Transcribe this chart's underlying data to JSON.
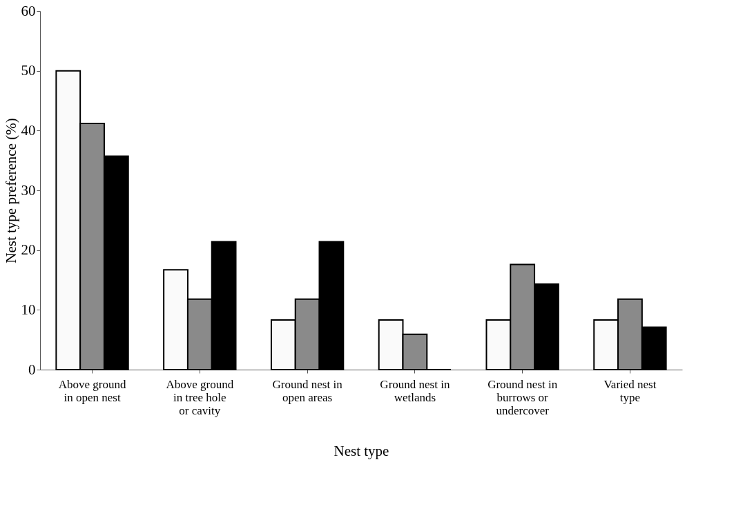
{
  "chart_data": {
    "type": "bar",
    "xlabel": "Nest type",
    "ylabel": "Nest type preference (%)",
    "categories": [
      "Above ground in open nest",
      "Above ground in tree hole or cavity",
      "Ground nest in open areas",
      "Ground nest in wetlands",
      "Ground nest in burrows or undercover",
      "Varied nest type"
    ],
    "series": [
      {
        "color": "#fafafa",
        "values": [
          50,
          16.7,
          8.3,
          8.3,
          8.3,
          8.3
        ]
      },
      {
        "color": "#8a8a8a",
        "values": [
          41.2,
          11.8,
          11.8,
          5.9,
          17.6,
          11.8
        ]
      },
      {
        "color": "#000000",
        "values": [
          35.7,
          21.4,
          21.4,
          0,
          14.3,
          7.1
        ]
      }
    ],
    "ylim": [
      0,
      60
    ],
    "yticks": [
      0,
      10,
      20,
      30,
      40,
      50,
      60
    ],
    "grid": false,
    "legend": false
  }
}
